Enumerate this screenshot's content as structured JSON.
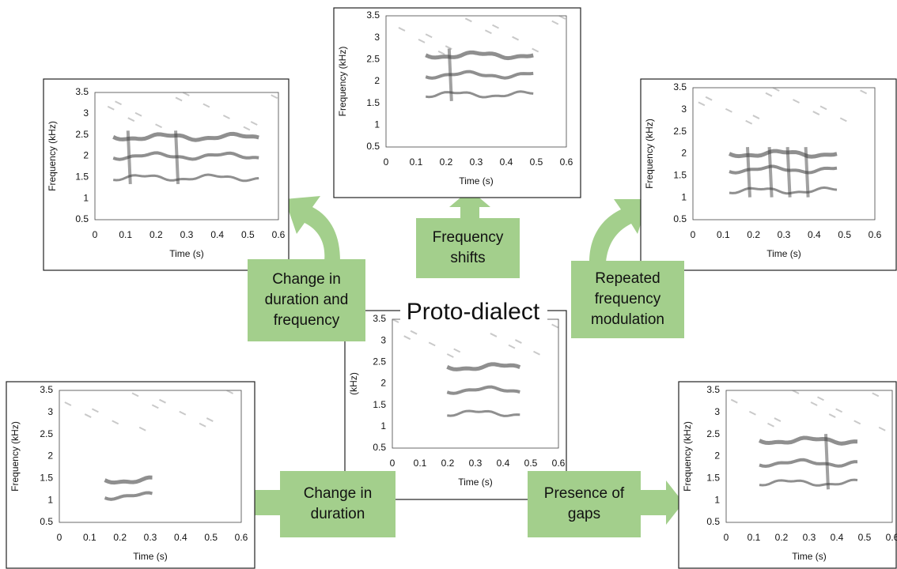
{
  "title": "Proto-dialect",
  "panels": [
    {
      "y_label": "(kHz)",
      "x_label": "Time (s)",
      "yticks": [
        "3.5",
        "3",
        "2.5",
        "2",
        "1.5",
        "1",
        "0.5"
      ],
      "xticks": [
        "0",
        "0.1",
        "0.2",
        "0.3",
        "0.4",
        "0.5",
        "0.6"
      ]
    },
    {
      "y_label": "Frequency (kHz)",
      "x_label": "Time (s)",
      "yticks": [
        "3.5",
        "3",
        "2.5",
        "2",
        "1.5",
        "1",
        "0.5"
      ],
      "xticks": [
        "0",
        "0.1",
        "0.2",
        "0.3",
        "0.4",
        "0.5",
        "0.6"
      ]
    },
    {
      "y_label": "Frequency (kHz)",
      "x_label": "Time (s)",
      "yticks": [
        "3.5",
        "3",
        "2.5",
        "2",
        "1.5",
        "1",
        "0.5"
      ],
      "xticks": [
        "0",
        "0.1",
        "0.2",
        "0.3",
        "0.4",
        "0.5",
        "0.6"
      ]
    },
    {
      "y_label": "Frequency (kHz)",
      "x_label": "Time (s)",
      "yticks": [
        "3.5",
        "3",
        "2.5",
        "2",
        "1.5",
        "1",
        "0.5"
      ],
      "xticks": [
        "0",
        "0.1",
        "0.2",
        "0.3",
        "0.4",
        "0.5",
        "0.6"
      ]
    },
    {
      "y_label": "Frequency (kHz)",
      "x_label": "Time (s)",
      "yticks": [
        "3.5",
        "3",
        "2.5",
        "2",
        "1.5",
        "1",
        "0.5"
      ],
      "xticks": [
        "0",
        "0.1",
        "0.2",
        "0.3",
        "0.4",
        "0.5",
        "0.6"
      ]
    },
    {
      "y_label": "Frequency (kHz)",
      "x_label": "Time (s)",
      "yticks": [
        "3.5",
        "3",
        "2.5",
        "2",
        "1.5",
        "1",
        "0.5"
      ],
      "xticks": [
        "0",
        "0.1",
        "0.2",
        "0.3",
        "0.4",
        "0.5",
        "0.6"
      ]
    }
  ],
  "labels": [
    {
      "lines": [
        "Change in",
        "duration and",
        "frequency"
      ]
    },
    {
      "lines": [
        "Frequency",
        "shifts"
      ]
    },
    {
      "lines": [
        "Repeated",
        "frequency",
        "modulation"
      ]
    },
    {
      "lines": [
        "Change in",
        "duration"
      ]
    },
    {
      "lines": [
        "Presence of",
        "gaps"
      ]
    }
  ]
}
